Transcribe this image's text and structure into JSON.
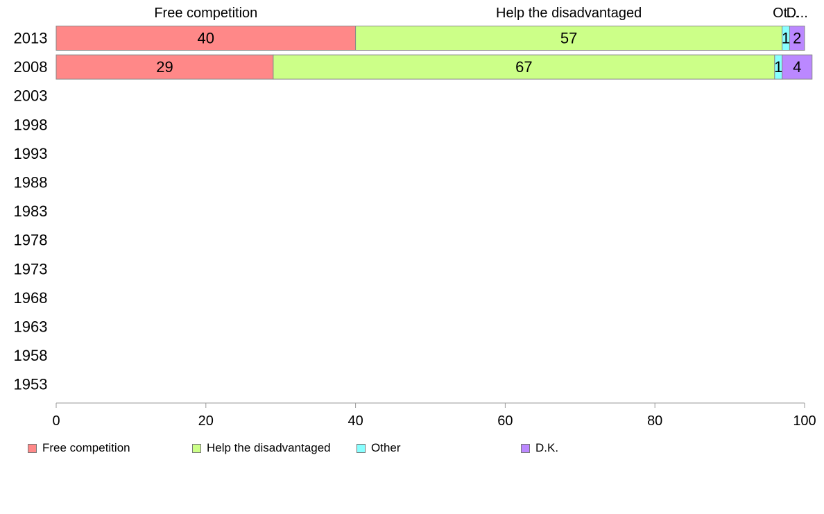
{
  "chart_data": {
    "type": "bar",
    "orientation": "horizontal",
    "stacked": true,
    "categories": [
      "2013",
      "2008",
      "2003",
      "1998",
      "1993",
      "1988",
      "1983",
      "1978",
      "1973",
      "1968",
      "1963",
      "1958",
      "1953"
    ],
    "series": [
      {
        "name": "Free competition",
        "values": [
          40,
          29,
          null,
          null,
          null,
          null,
          null,
          null,
          null,
          null,
          null,
          null,
          null
        ],
        "color": "#FF8888"
      },
      {
        "name": "Help the disadvantaged",
        "values": [
          57,
          67,
          null,
          null,
          null,
          null,
          null,
          null,
          null,
          null,
          null,
          null,
          null
        ],
        "color": "#CCFF88"
      },
      {
        "name": "Other",
        "values": [
          1,
          1,
          null,
          null,
          null,
          null,
          null,
          null,
          null,
          null,
          null,
          null,
          null
        ],
        "color": "#88FFFF"
      },
      {
        "name": "D.K.",
        "values": [
          2,
          4,
          null,
          null,
          null,
          null,
          null,
          null,
          null,
          null,
          null,
          null,
          null
        ],
        "color": "#BB88FF"
      }
    ],
    "top_labels": [
      "Free competition",
      "Help the disadvantaged",
      "Ot...",
      "D..."
    ],
    "x_ticks": [
      "0",
      "20",
      "40",
      "60",
      "80",
      "100"
    ],
    "xlim": [
      0,
      100
    ],
    "grid": false,
    "legend_position": "bottom",
    "title": "",
    "xlabel": "",
    "ylabel": ""
  }
}
